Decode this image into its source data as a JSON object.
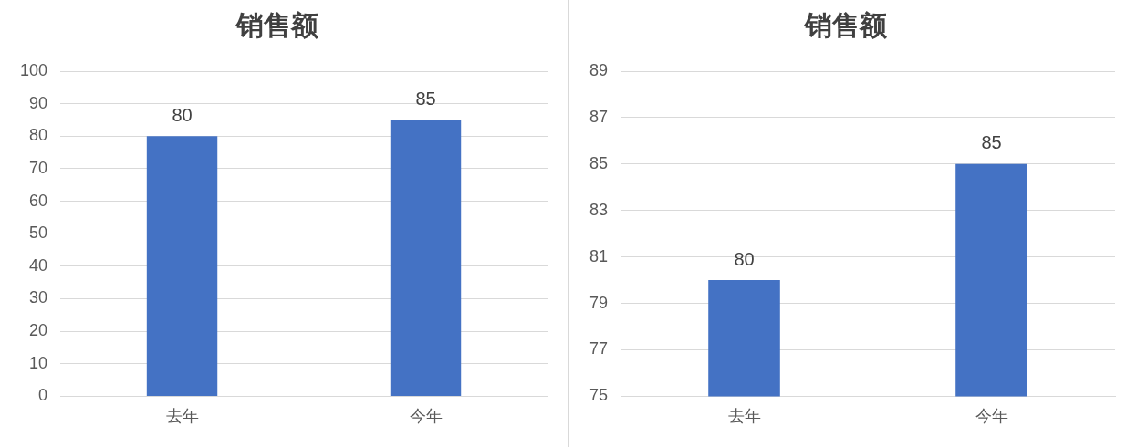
{
  "chart_data": [
    {
      "type": "bar",
      "title": "销售额",
      "categories": [
        "去年",
        "今年"
      ],
      "values": [
        80,
        85
      ],
      "color": "#4472c4",
      "ylim": [
        0,
        100
      ],
      "yticks": [
        0,
        10,
        20,
        30,
        40,
        50,
        60,
        70,
        80,
        90,
        100
      ],
      "grid": "y",
      "data_labels": true
    },
    {
      "type": "bar",
      "title": "销售额",
      "categories": [
        "去年",
        "今年"
      ],
      "values": [
        80,
        85
      ],
      "color": "#4472c4",
      "ylim": [
        75,
        89
      ],
      "yticks": [
        75,
        77,
        79,
        81,
        83,
        85,
        87,
        89
      ],
      "grid": "y",
      "data_labels": true
    }
  ]
}
